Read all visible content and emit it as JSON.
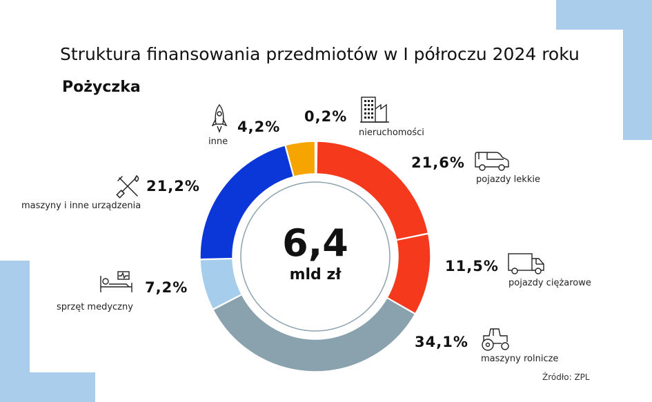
{
  "title": "Struktura finansowania przedmiotów w I półroczu 2024 roku",
  "subtitle": "Pożyczka",
  "center": {
    "value": "6,4",
    "unit": "mld zł"
  },
  "source": "Źródło: ZPL",
  "colors": {
    "decor": "#a9cdea",
    "pojazdy lekkie": "#f4391c",
    "pojazdy ciężarowe": "#f4391c",
    "maszyny rolnicze": "#8aa1ae",
    "sprzęt medyczny": "#a7cdec",
    "maszyny i inne urządzenia": "#0b36d8",
    "inne": "#f5a400",
    "nieruchomości": "#8aa1ae"
  },
  "chart_data": {
    "type": "pie",
    "donut": true,
    "categories": [
      "nieruchomości",
      "pojazdy lekkie",
      "pojazdy ciężarowe",
      "maszyny rolnicze",
      "sprzęt medyczny",
      "maszyny i inne urządzenia",
      "inne"
    ],
    "values": [
      0.2,
      21.6,
      11.5,
      34.1,
      7.2,
      21.2,
      4.2
    ],
    "value_labels": [
      "0,2%",
      "21,6%",
      "11,5%",
      "34,1%",
      "7,2%",
      "21,2%",
      "4,2%"
    ],
    "icons": [
      "building-icon",
      "van-icon",
      "truck-icon",
      "tractor-icon",
      "hospital-bed-icon",
      "tools-icon",
      "rocket-icon"
    ]
  }
}
